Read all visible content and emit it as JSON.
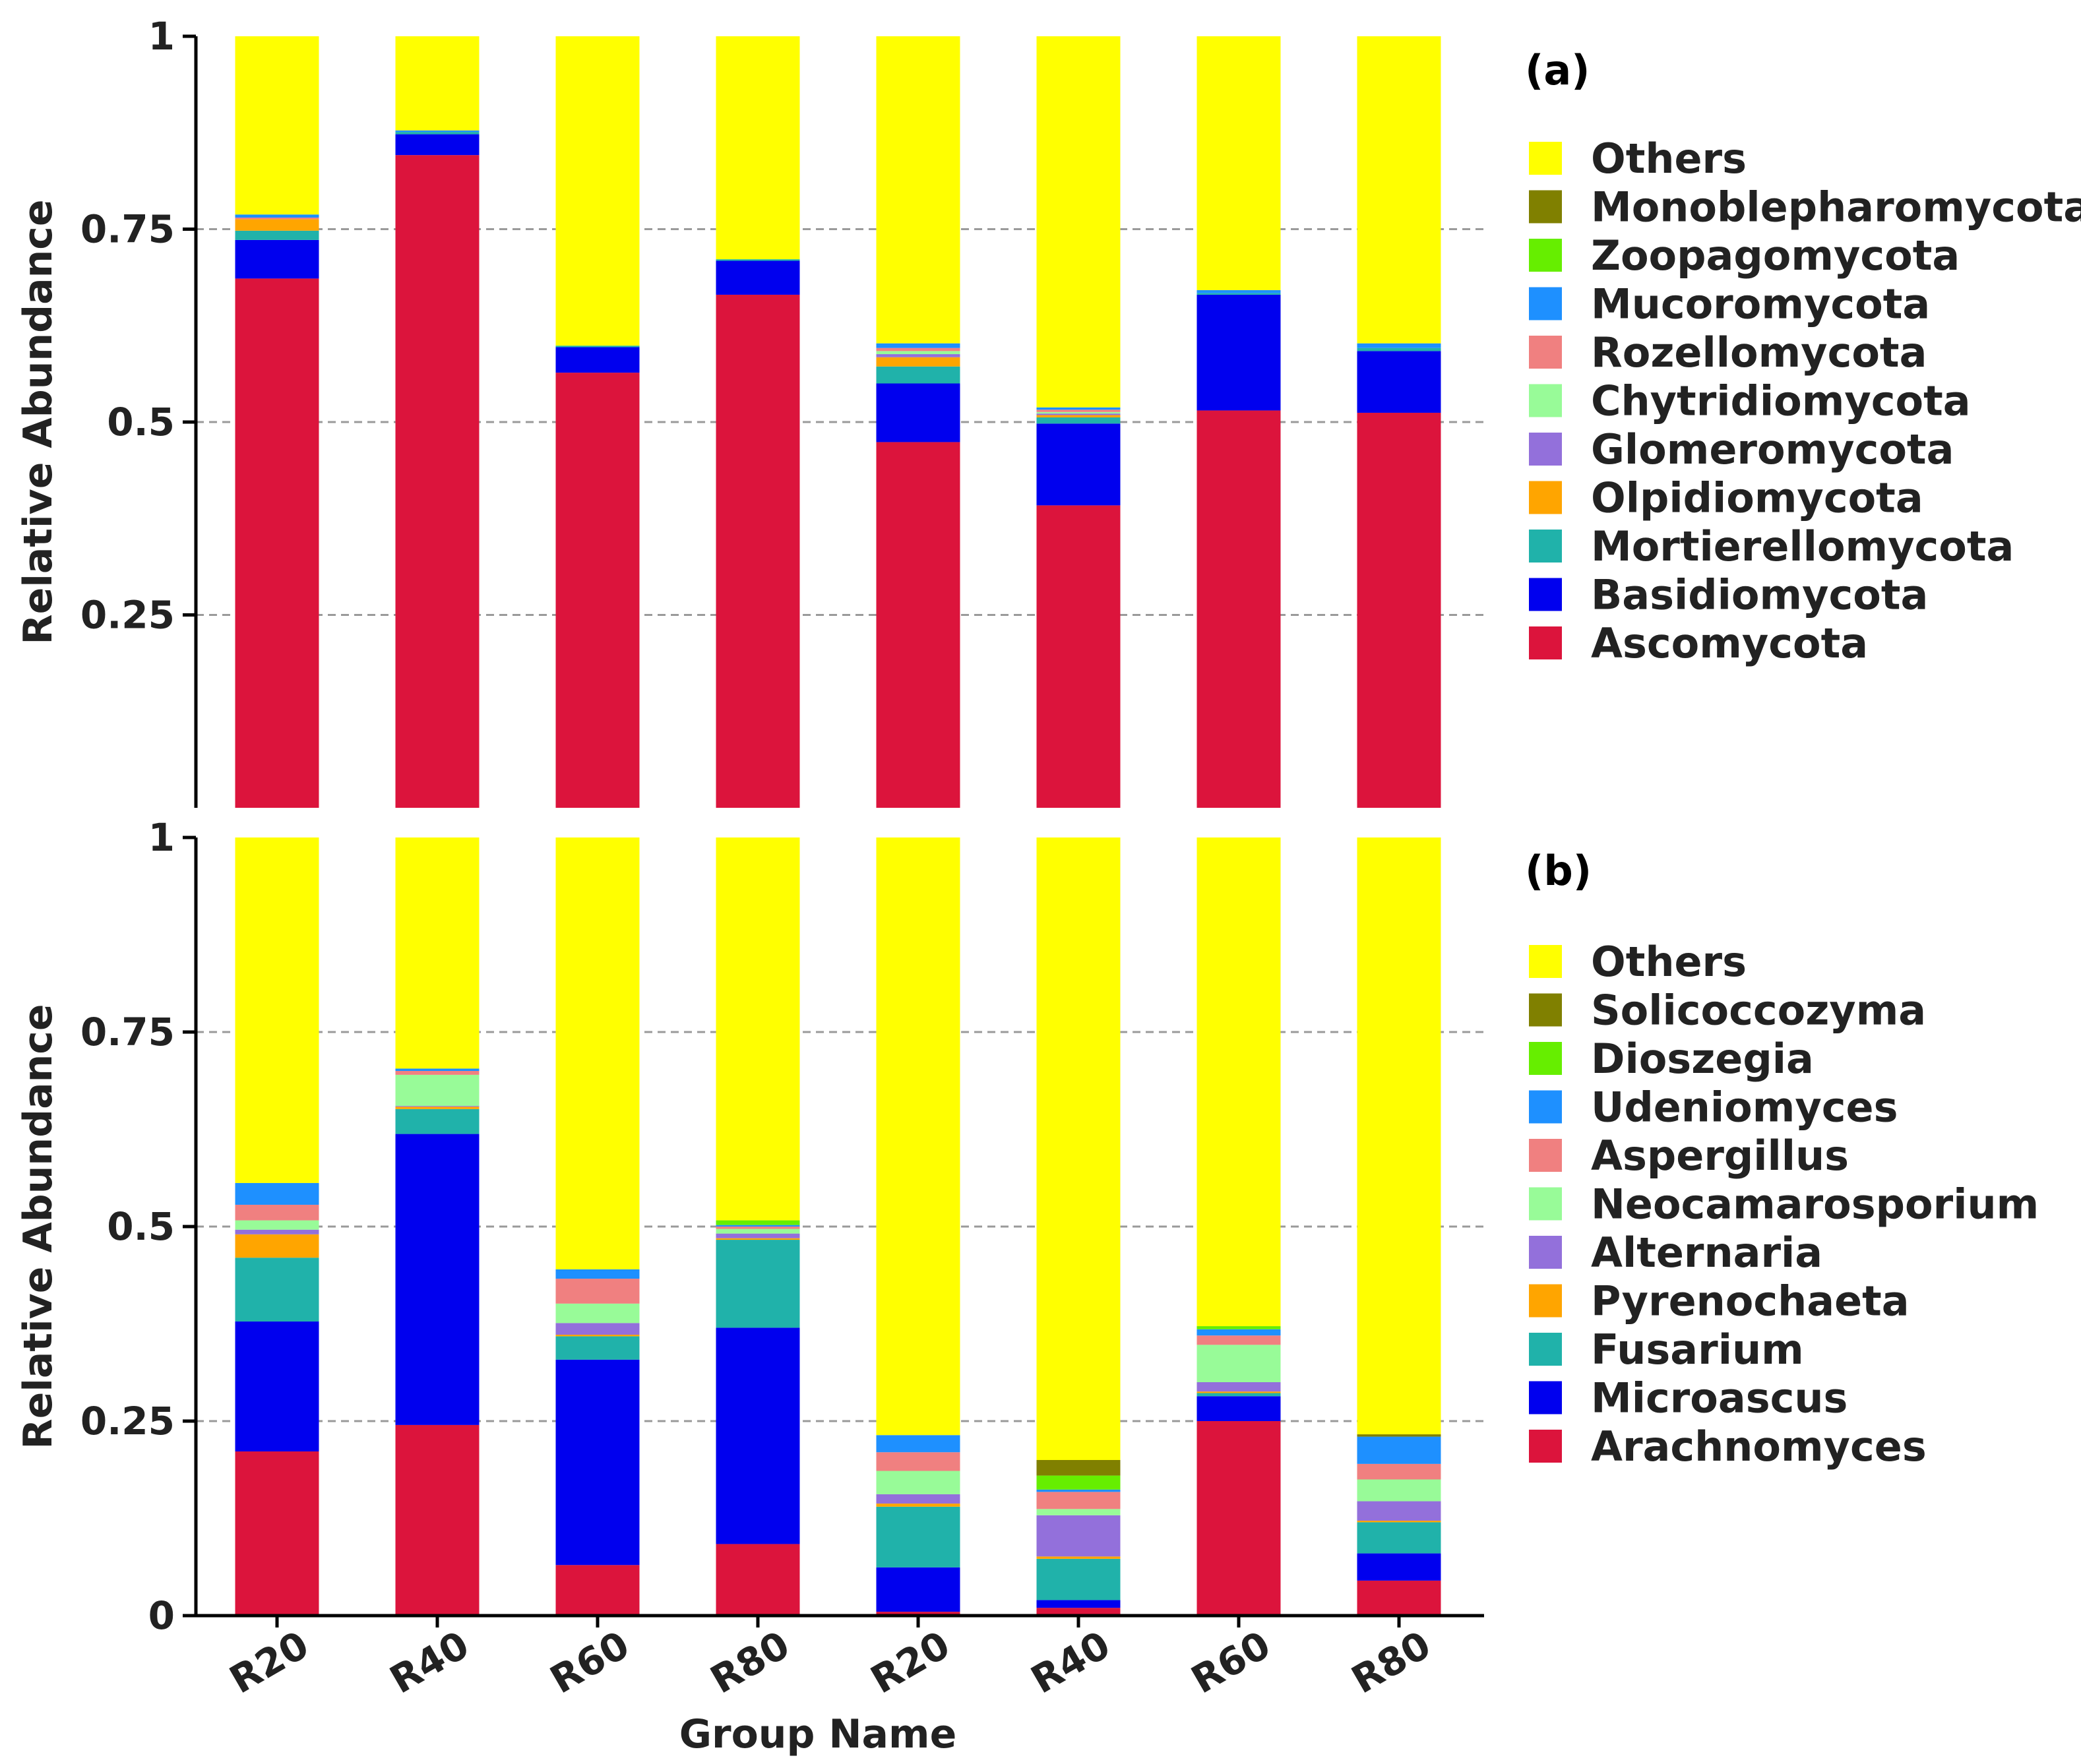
{
  "chart_data": [
    {
      "type": "bar",
      "stacked": true,
      "panel_label": "(a)",
      "title": "",
      "xlabel": "",
      "ylabel": "Relative Abundance",
      "ylim": [
        0,
        1
      ],
      "yticks": [
        "0.25",
        "0.5",
        "0.75",
        "1"
      ],
      "ytick_values": [
        0.25,
        0.5,
        0.75,
        1
      ],
      "gridlines": [
        0.25,
        0.5,
        0.75
      ],
      "categories": [
        "R20",
        "R40",
        "R60",
        "R80",
        "R20",
        "R40",
        "R60",
        "R80"
      ],
      "legend_position": "right",
      "series": [
        {
          "name": "Ascomycota",
          "color": "#dc143c",
          "values": [
            0.686,
            0.846,
            0.564,
            0.665,
            0.474,
            0.392,
            0.515,
            0.512
          ]
        },
        {
          "name": "Basidiomycota",
          "color": "#0000ee",
          "values": [
            0.05,
            0.027,
            0.033,
            0.044,
            0.076,
            0.106,
            0.15,
            0.08
          ]
        },
        {
          "name": "Mortierellomycota",
          "color": "#20b2aa",
          "values": [
            0.012,
            0.003,
            0.002,
            0.002,
            0.022,
            0.008,
            0.002,
            0.004
          ]
        },
        {
          "name": "Olpidiomycota",
          "color": "#ffa500",
          "values": [
            0.015,
            0.0,
            0.0,
            0.0,
            0.012,
            0.003,
            0.0,
            0.0
          ]
        },
        {
          "name": "Glomeromycota",
          "color": "#9370db",
          "values": [
            0.0,
            0.0,
            0.0,
            0.0,
            0.004,
            0.002,
            0.0,
            0.0
          ]
        },
        {
          "name": "Chytridiomycota",
          "color": "#98fb98",
          "values": [
            0.0,
            0.0,
            0.0,
            0.0,
            0.004,
            0.002,
            0.0,
            0.0
          ]
        },
        {
          "name": "Rozellomycota",
          "color": "#f08080",
          "values": [
            0.002,
            0.0,
            0.0,
            0.0,
            0.004,
            0.003,
            0.0,
            0.0
          ]
        },
        {
          "name": "Mucoromycota",
          "color": "#1e90ff",
          "values": [
            0.004,
            0.002,
            0.0,
            0.0,
            0.006,
            0.003,
            0.004,
            0.006
          ]
        },
        {
          "name": "Zoopagomycota",
          "color": "#66ee00",
          "values": [
            0.0,
            0.0,
            0.0,
            0.0,
            0.0,
            0.0,
            0.0,
            0.0
          ]
        },
        {
          "name": "Monoblepharomycota",
          "color": "#808000",
          "values": [
            0.0,
            0.0,
            0.0,
            0.0,
            0.0,
            0.0,
            0.0,
            0.0
          ]
        },
        {
          "name": "Others",
          "color": "#ffff00",
          "values": [
            0.231,
            0.122,
            0.401,
            0.289,
            0.398,
            0.481,
            0.329,
            0.398
          ]
        }
      ]
    },
    {
      "type": "bar",
      "stacked": true,
      "panel_label": "(b)",
      "title": "",
      "xlabel": "Group Name",
      "ylabel": "Relative Abundance",
      "ylim": [
        0,
        1
      ],
      "yticks": [
        "0",
        "0.25",
        "0.5",
        "0.75",
        "1"
      ],
      "ytick_values": [
        0,
        0.25,
        0.5,
        0.75,
        1
      ],
      "gridlines": [
        0.25,
        0.5,
        0.75
      ],
      "categories": [
        "R20",
        "R40",
        "R60",
        "R80",
        "R20",
        "R40",
        "R60",
        "R80"
      ],
      "legend_position": "right",
      "series": [
        {
          "name": "Arachnomyces",
          "color": "#dc143c",
          "values": [
            0.211,
            0.245,
            0.065,
            0.092,
            0.005,
            0.01,
            0.25,
            0.045
          ]
        },
        {
          "name": "Microascus",
          "color": "#0000ee",
          "values": [
            0.167,
            0.374,
            0.264,
            0.278,
            0.057,
            0.01,
            0.032,
            0.035
          ]
        },
        {
          "name": "Fusarium",
          "color": "#20b2aa",
          "values": [
            0.082,
            0.032,
            0.03,
            0.113,
            0.078,
            0.053,
            0.004,
            0.04
          ]
        },
        {
          "name": "Pyrenochaeta",
          "color": "#ffa500",
          "values": [
            0.03,
            0.003,
            0.002,
            0.002,
            0.004,
            0.003,
            0.002,
            0.002
          ]
        },
        {
          "name": "Alternaria",
          "color": "#9370db",
          "values": [
            0.006,
            0.001,
            0.015,
            0.006,
            0.012,
            0.053,
            0.012,
            0.025
          ]
        },
        {
          "name": "Neocamarosporium",
          "color": "#98fb98",
          "values": [
            0.012,
            0.04,
            0.025,
            0.006,
            0.03,
            0.008,
            0.048,
            0.028
          ]
        },
        {
          "name": "Aspergillus",
          "color": "#f08080",
          "values": [
            0.02,
            0.005,
            0.032,
            0.003,
            0.024,
            0.022,
            0.012,
            0.02
          ]
        },
        {
          "name": "Udeniomyces",
          "color": "#1e90ff",
          "values": [
            0.028,
            0.003,
            0.012,
            0.002,
            0.022,
            0.003,
            0.008,
            0.035
          ]
        },
        {
          "name": "Dioszegia",
          "color": "#66ee00",
          "values": [
            0.0,
            0.0,
            0.0,
            0.006,
            0.0,
            0.018,
            0.004,
            0.0
          ]
        },
        {
          "name": "Solicoccozyma",
          "color": "#808000",
          "values": [
            0.0,
            0.0,
            0.0,
            0.0,
            0.0,
            0.02,
            0.0,
            0.003
          ]
        },
        {
          "name": "Others",
          "color": "#ffff00",
          "values": [
            0.444,
            0.297,
            0.555,
            0.492,
            0.768,
            0.8,
            0.628,
            0.767
          ]
        }
      ]
    }
  ]
}
